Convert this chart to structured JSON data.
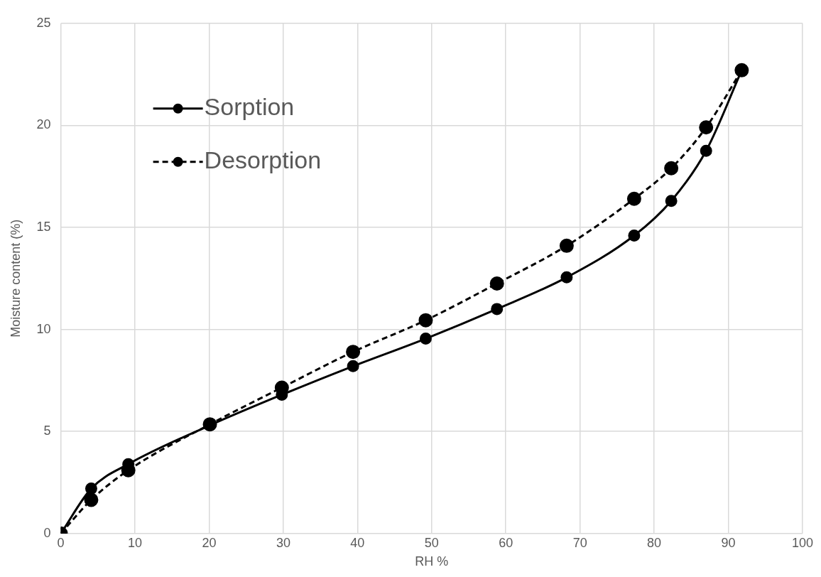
{
  "chart_data": {
    "type": "line",
    "xlabel": "RH %",
    "ylabel": "Moisture content (%)",
    "xlim": [
      0,
      100
    ],
    "xticks": [
      0,
      10,
      20,
      30,
      40,
      50,
      60,
      70,
      80,
      90,
      100
    ],
    "ylim": [
      0,
      25
    ],
    "yticks": [
      0,
      5,
      10,
      15,
      20,
      25
    ],
    "grid": true,
    "legend": "top left",
    "marker": "circle",
    "series": [
      {
        "name": "Sorption",
        "color": "#000000",
        "line_style": "solid",
        "x": [
          0,
          4.1,
          9.1,
          20.1,
          29.8,
          39.4,
          49.2,
          58.8,
          68.2,
          77.3,
          82.3,
          87,
          91.8
        ],
        "values": [
          0,
          2.2,
          3.4,
          5.3,
          6.8,
          8.2,
          9.55,
          11.0,
          12.55,
          14.6,
          16.3,
          18.75,
          22.7
        ]
      },
      {
        "name": "Desorption",
        "color": "#000000",
        "line_style": "dashed",
        "x": [
          0,
          4.1,
          9.1,
          20.1,
          29.8,
          39.4,
          49.2,
          58.8,
          68.2,
          77.3,
          82.3,
          87,
          91.8
        ],
        "values": [
          0,
          1.65,
          3.1,
          5.35,
          7.15,
          8.9,
          10.45,
          12.25,
          14.1,
          16.4,
          17.9,
          19.9,
          22.7
        ]
      }
    ]
  }
}
